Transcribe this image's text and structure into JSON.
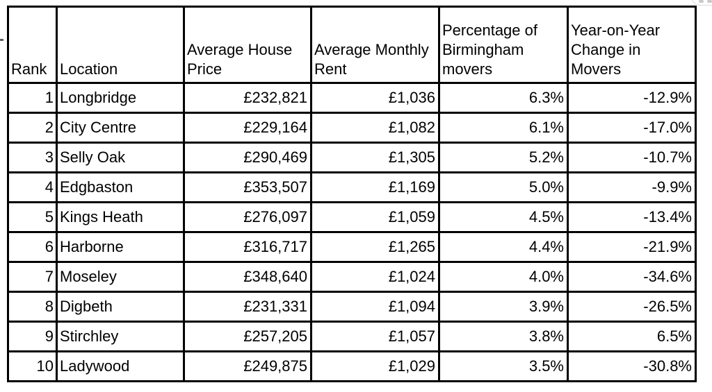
{
  "colors": {
    "background": "#ffffff",
    "table_border": "#000000",
    "text": "#000000",
    "toolbar_border": "#d9d9d9",
    "toolbar_glyph": "#c9c9c9"
  },
  "table": {
    "columns": [
      {
        "key": "rank",
        "label": "Rank",
        "align": "right"
      },
      {
        "key": "location",
        "label": "Location",
        "align": "left"
      },
      {
        "key": "avg-house-price",
        "label": "Average House\nPrice",
        "align": "right"
      },
      {
        "key": "avg-monthly-rent",
        "label": "Average Monthly\nRent",
        "align": "right"
      },
      {
        "key": "pct-movers",
        "label": "Percentage of\nBirmingham\nmovers",
        "align": "right"
      },
      {
        "key": "yoy-change",
        "label": "Year-on-Year\nChange in\nMovers",
        "align": "right"
      }
    ],
    "rows": [
      [
        "1",
        "Longbridge",
        "£232,821",
        "£1,036",
        "6.3%",
        "-12.9%"
      ],
      [
        "2",
        "City Centre",
        "£229,164",
        "£1,082",
        "6.1%",
        "-17.0%"
      ],
      [
        "3",
        "Selly Oak",
        "£290,469",
        "£1,305",
        "5.2%",
        "-10.7%"
      ],
      [
        "4",
        "Edgbaston",
        "£353,507",
        "£1,169",
        "5.0%",
        "-9.9%"
      ],
      [
        "5",
        "Kings Heath",
        "£276,097",
        "£1,059",
        "4.5%",
        "-13.4%"
      ],
      [
        "6",
        "Harborne",
        "£316,717",
        "£1,265",
        "4.4%",
        "-21.9%"
      ],
      [
        "7",
        "Moseley",
        "£348,640",
        "£1,024",
        "4.0%",
        "-34.6%"
      ],
      [
        "8",
        "Digbeth",
        "£231,331",
        "£1,094",
        "3.9%",
        "-26.5%"
      ],
      [
        "9",
        "Stirchley",
        "£257,205",
        "£1,057",
        "3.8%",
        "6.5%"
      ],
      [
        "10",
        "Ladywood",
        "£249,875",
        "£1,029",
        "3.5%",
        "-30.8%"
      ]
    ]
  }
}
